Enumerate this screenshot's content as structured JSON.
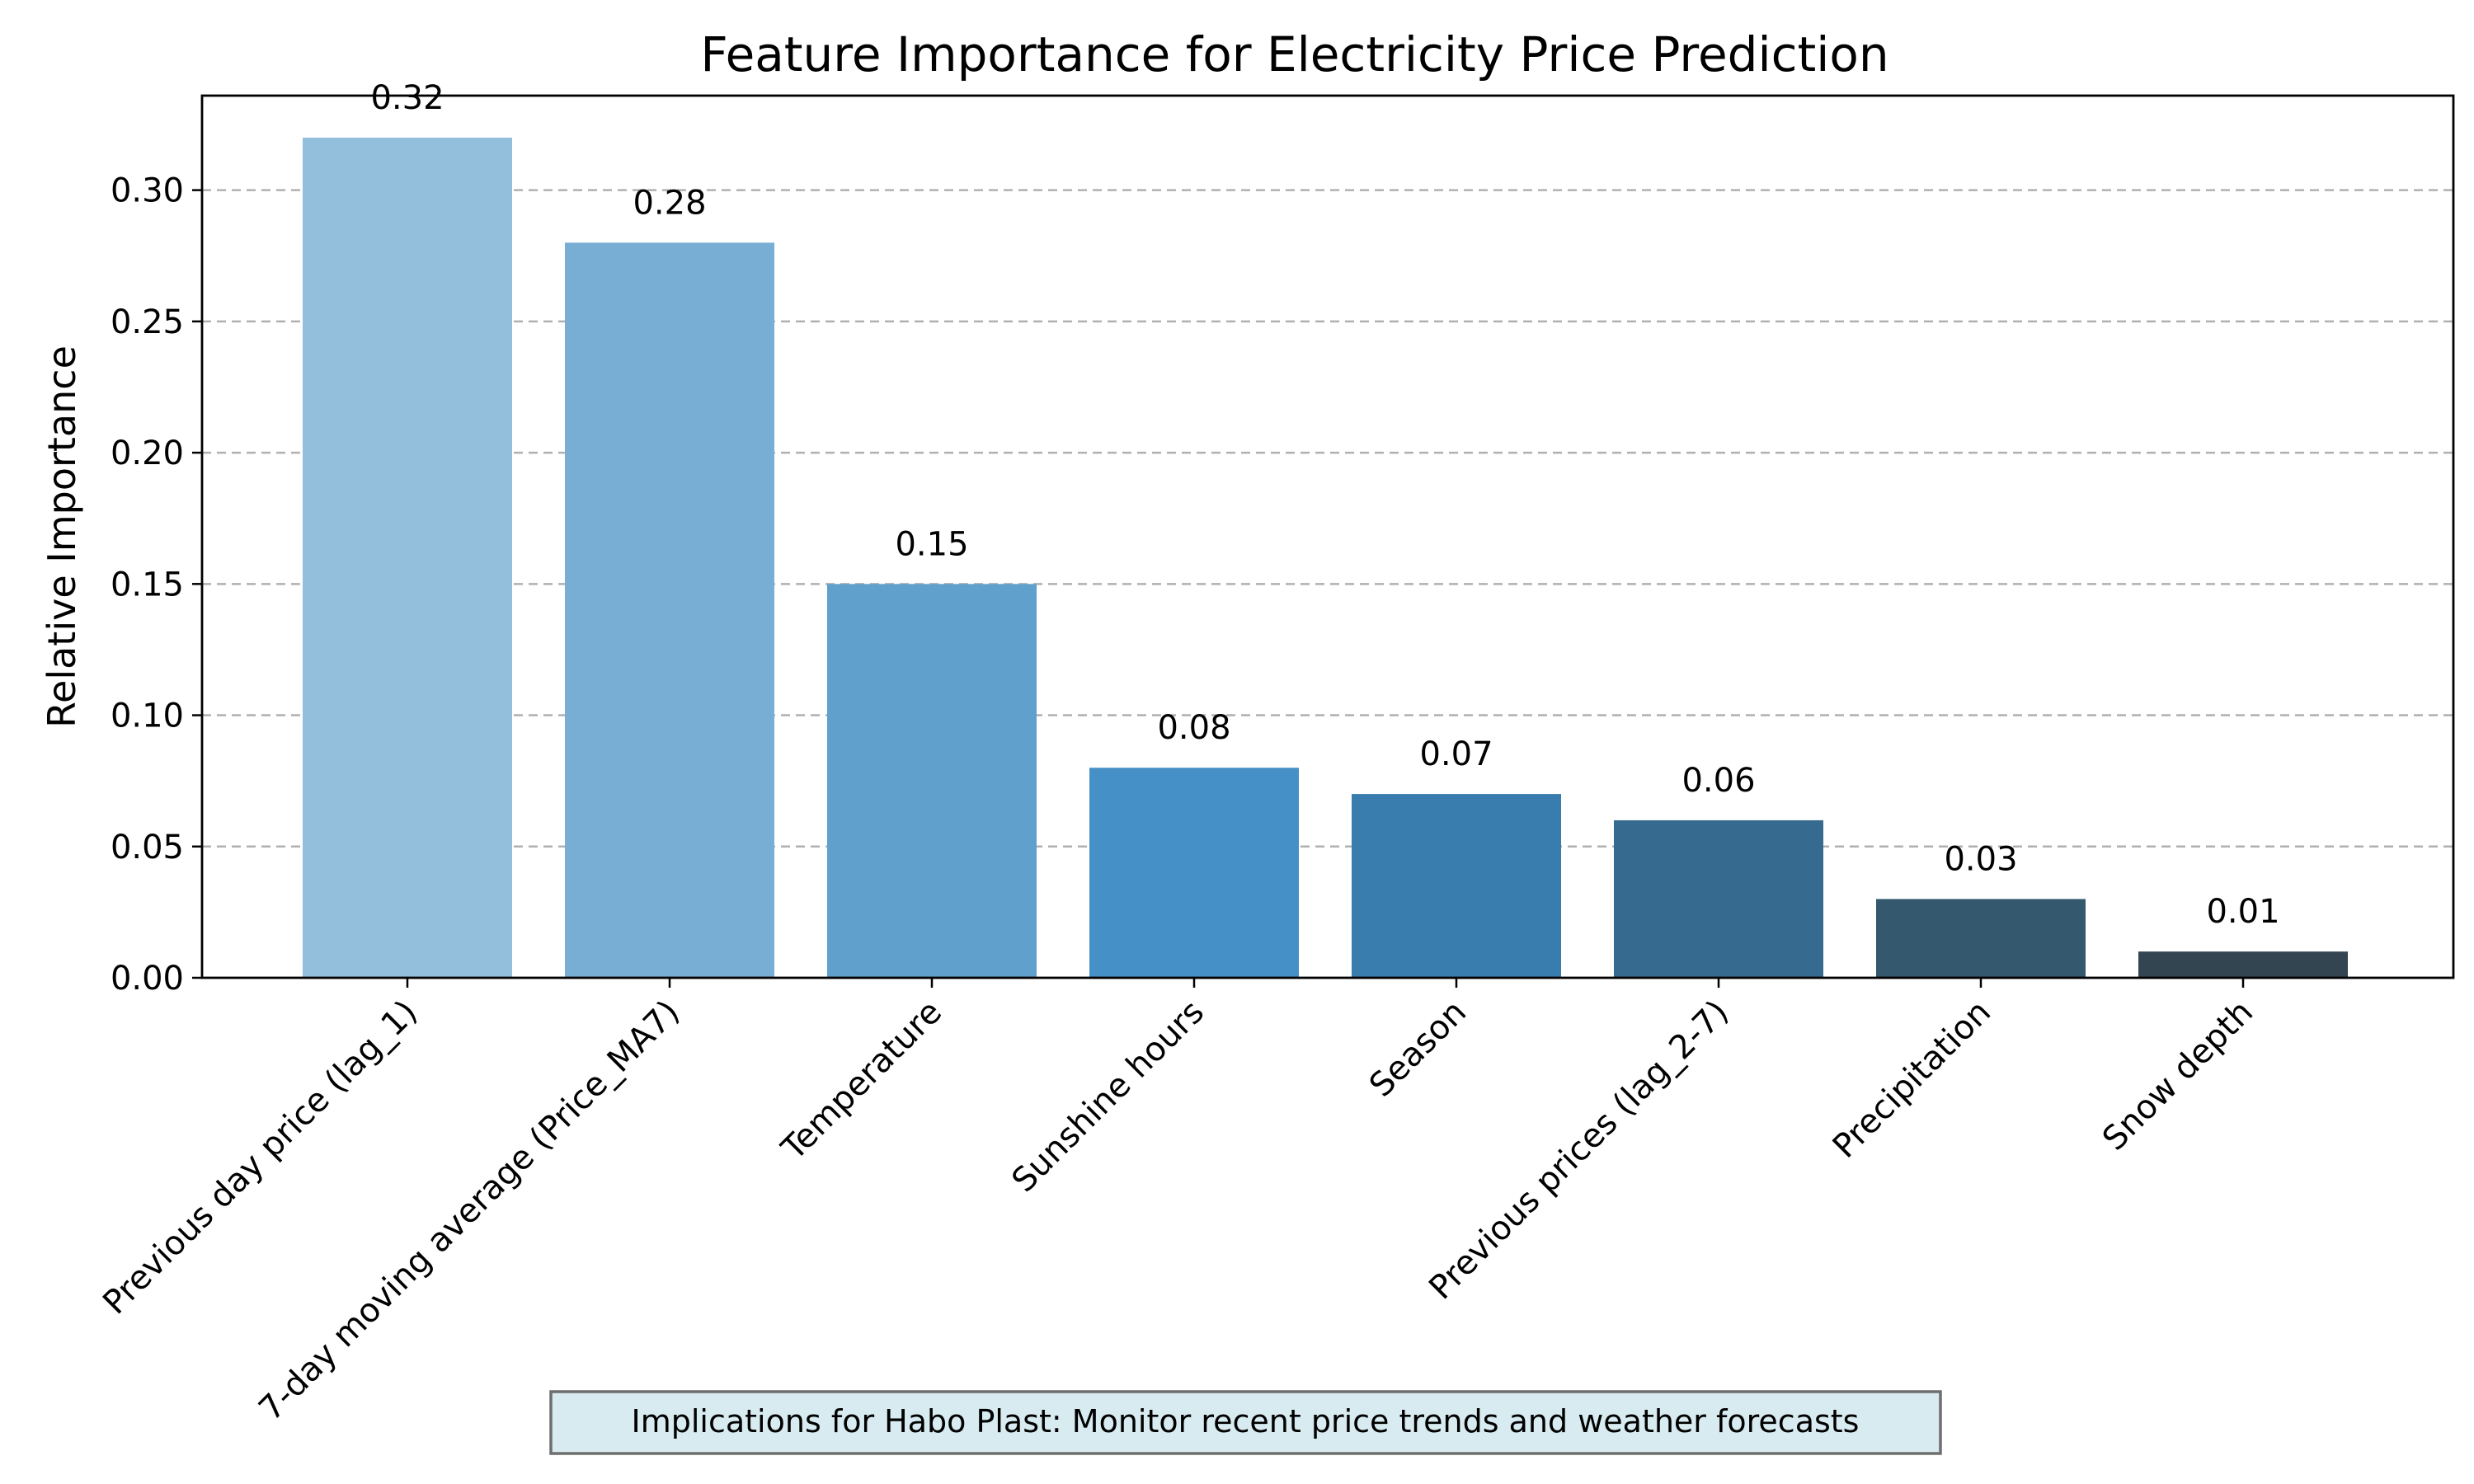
{
  "chart_data": {
    "type": "bar",
    "title": "Feature Importance for Electricity Price Prediction",
    "xlabel": "",
    "ylabel": "Relative Importance",
    "categories": [
      "Previous day price (lag_1)",
      "7-day moving average (Price_MA7)",
      "Temperature",
      "Sunshine hours",
      "Season",
      "Previous prices (lag_2-7)",
      "Precipitation",
      "Snow depth"
    ],
    "values": [
      0.32,
      0.28,
      0.15,
      0.08,
      0.07,
      0.06,
      0.03,
      0.01
    ],
    "value_labels": [
      "0.32",
      "0.28",
      "0.15",
      "0.08",
      "0.07",
      "0.06",
      "0.03",
      "0.01"
    ],
    "bar_colors": [
      "#93bedc",
      "#78aed3",
      "#60a0cc",
      "#4590c6",
      "#397daf",
      "#366b8f",
      "#34586e",
      "#334551"
    ],
    "ylim": [
      0,
      0.336
    ],
    "yticks": [
      0.0,
      0.05,
      0.1,
      0.15,
      0.2,
      0.25,
      0.3
    ],
    "ytick_labels": [
      "0.00",
      "0.05",
      "0.10",
      "0.15",
      "0.20",
      "0.25",
      "0.30"
    ],
    "grid": "y-dashed",
    "legend": "none"
  },
  "annotation": {
    "text": "Implications for Habo Plast: Monitor recent price trends and weather forecasts"
  }
}
